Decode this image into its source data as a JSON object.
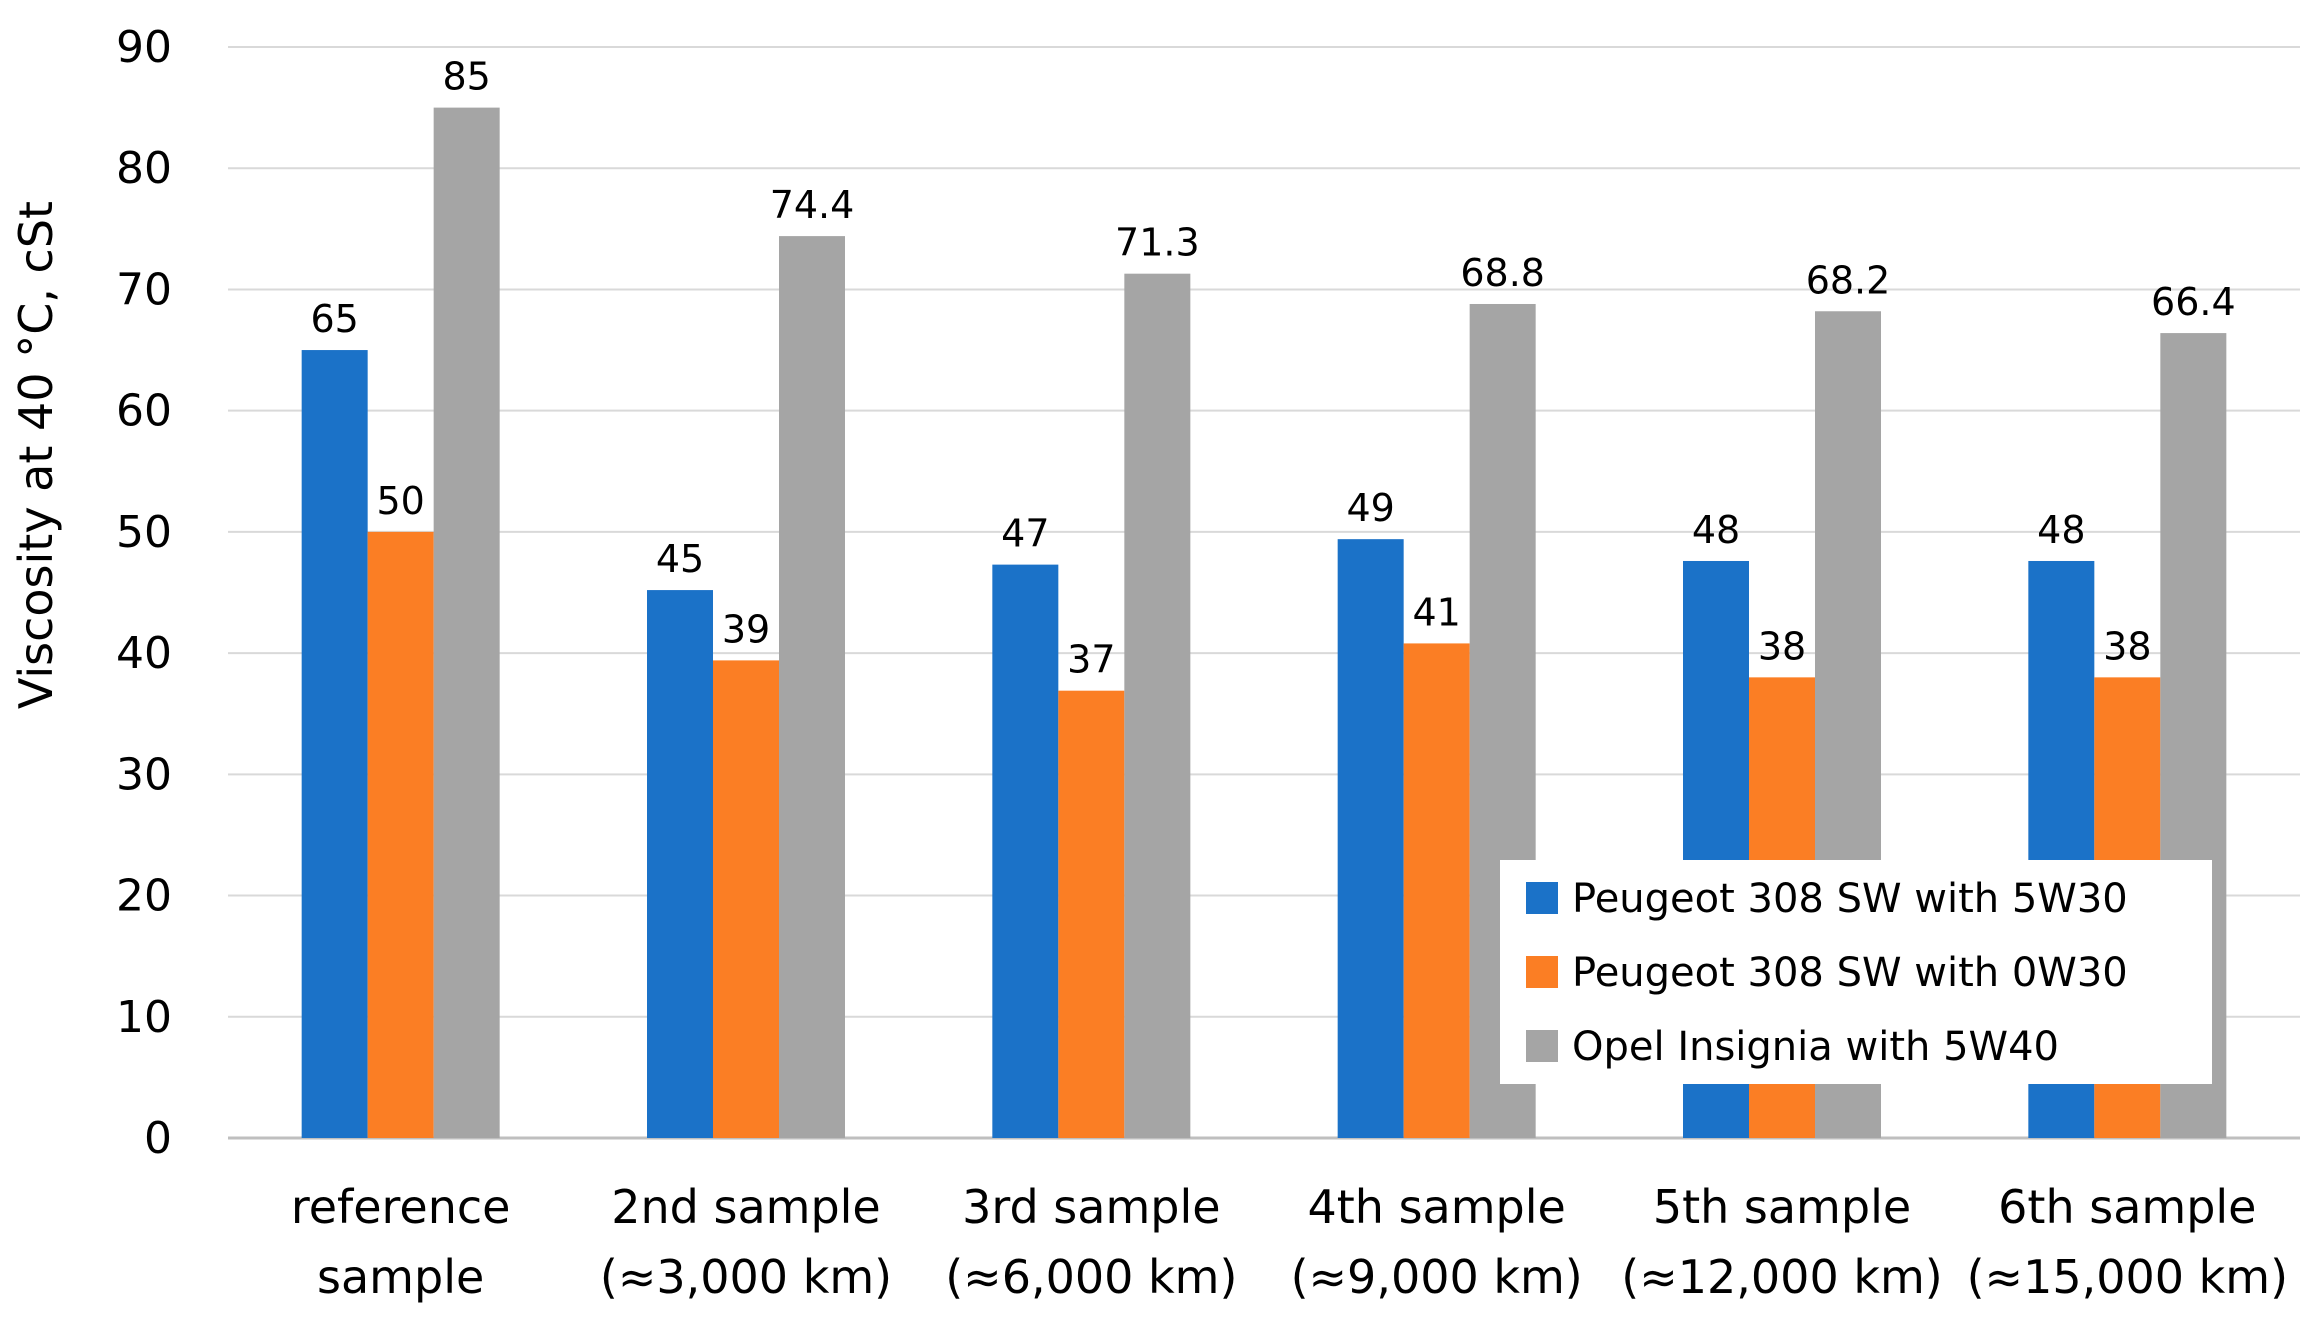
{
  "chart_data": {
    "type": "bar",
    "title": "",
    "xlabel": "",
    "ylabel": "Viscosity at 40 °C, cSt",
    "ylim": [
      0,
      90
    ],
    "yticks": [
      0,
      10,
      20,
      30,
      40,
      50,
      60,
      70,
      80,
      90
    ],
    "grid": true,
    "legend_position": "bottom-right",
    "categories": [
      [
        "reference",
        "sample"
      ],
      [
        "2nd sample",
        "(≈3,000 km)"
      ],
      [
        "3rd sample",
        "(≈6,000 km)"
      ],
      [
        "4th sample",
        "(≈9,000 km)"
      ],
      [
        "5th sample",
        "(≈12,000 km)"
      ],
      [
        "6th sample",
        "(≈15,000 km)"
      ]
    ],
    "series": [
      {
        "name": "Peugeot 308 SW with 5W30",
        "color": "#1B72C8",
        "values": [
          65,
          45.2,
          47.3,
          49.4,
          47.6,
          47.6
        ],
        "labels": [
          "65",
          "45",
          "47",
          "49",
          "48",
          "48"
        ]
      },
      {
        "name": "Peugeot 308 SW with 0W30",
        "color": "#FB7E24",
        "values": [
          50,
          39.4,
          36.9,
          40.8,
          38,
          38
        ],
        "labels": [
          "50",
          "39",
          "37",
          "41",
          "38",
          "38"
        ]
      },
      {
        "name": "Opel Insignia with 5W40",
        "color": "#A5A5A5",
        "values": [
          85,
          74.4,
          71.3,
          68.8,
          68.2,
          66.4
        ],
        "labels": [
          "85",
          "74.4",
          "71.3",
          "68.8",
          "68.2",
          "66.4"
        ]
      }
    ]
  }
}
